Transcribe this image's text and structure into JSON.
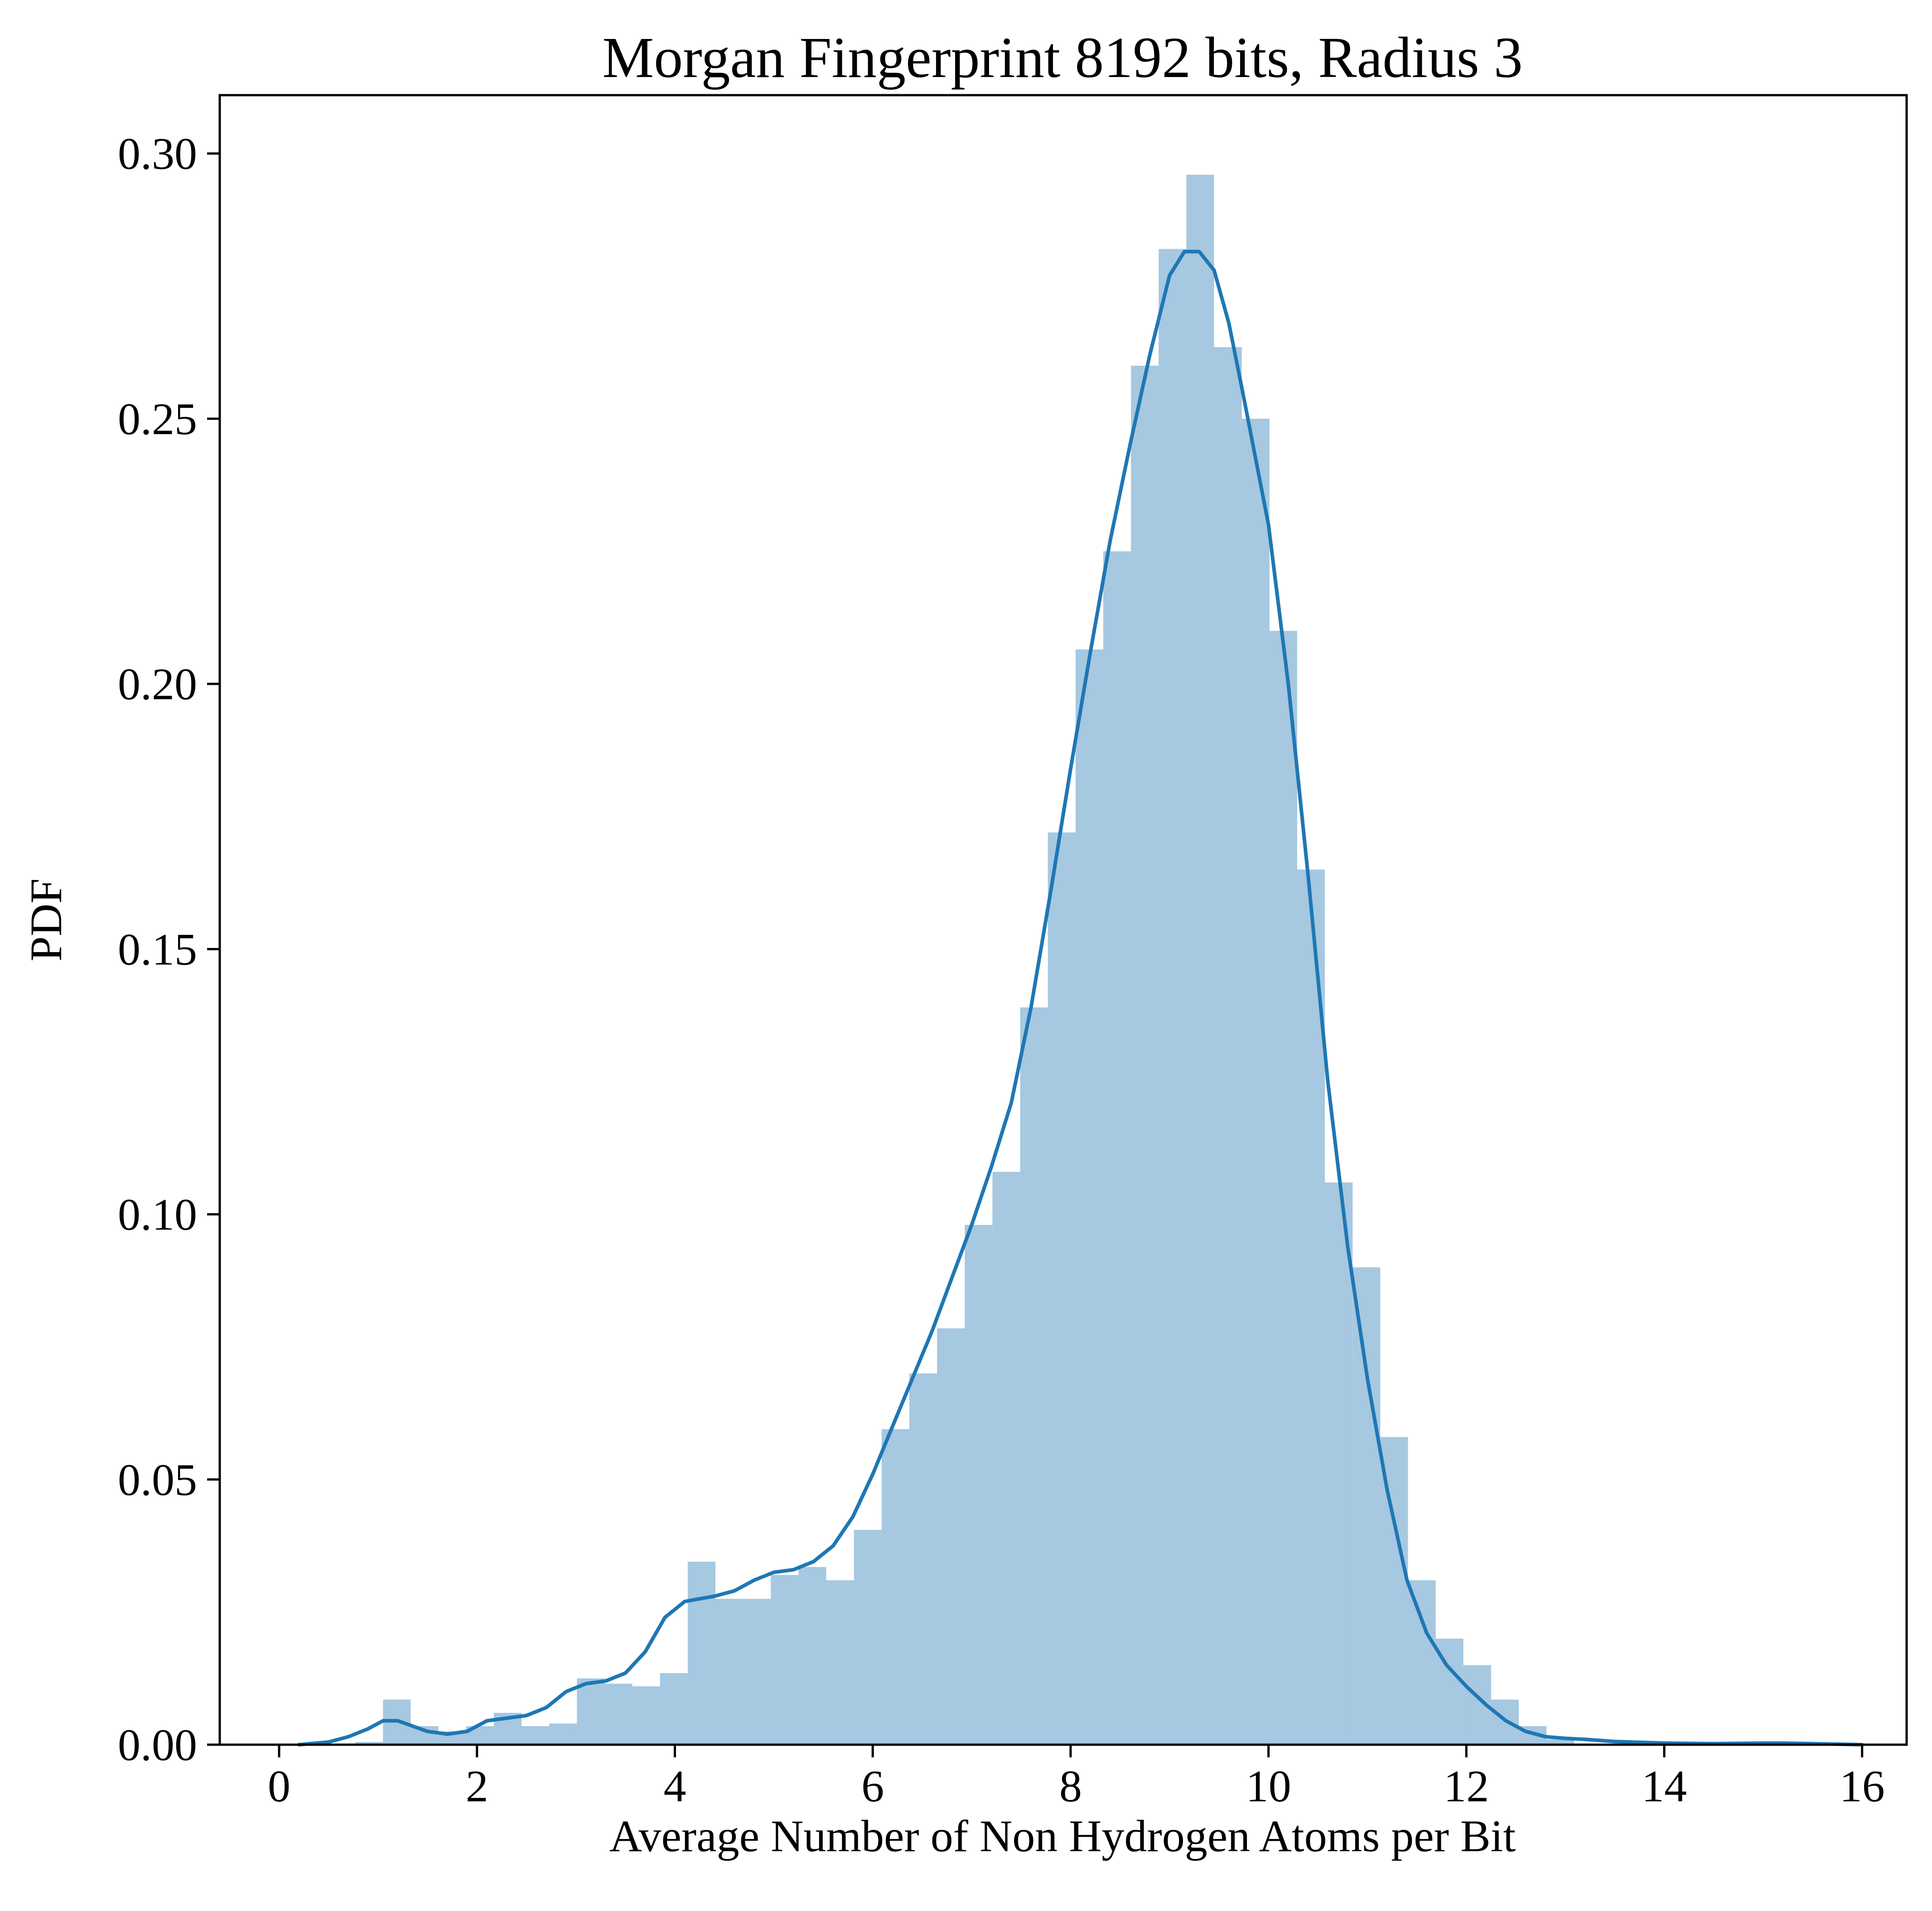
{
  "chart_data": {
    "type": "bar",
    "title": "Morgan Fingerprint 8192 bits, Radius 3",
    "xlabel": "Average Number of Non Hydrogen Atoms per Bit",
    "ylabel": "PDF",
    "xlim": [
      -0.6,
      16.45
    ],
    "ylim": [
      0,
      0.311
    ],
    "x_ticks": [
      0,
      2,
      4,
      6,
      8,
      10,
      12,
      14,
      16
    ],
    "x_tick_labels": [
      "0",
      "2",
      "4",
      "6",
      "8",
      "10",
      "12",
      "14",
      "16"
    ],
    "y_ticks": [
      0,
      0.05,
      0.1,
      0.15,
      0.2,
      0.25,
      0.3
    ],
    "y_tick_labels": [
      "0.00",
      "0.05",
      "0.10",
      "0.15",
      "0.20",
      "0.25",
      "0.30"
    ],
    "grid": false,
    "legend": "none",
    "bar_color": "#a6c8e1",
    "line_color": "#1f77b4",
    "histogram": {
      "bin_edges": [
        0.77,
        1.05,
        1.33,
        1.61,
        1.89,
        2.17,
        2.45,
        2.73,
        3.01,
        3.29,
        3.57,
        3.85,
        4.13,
        4.41,
        4.69,
        4.97,
        5.25,
        5.53,
        5.81,
        6.09,
        6.37,
        6.65,
        6.93,
        7.21,
        7.49,
        7.77,
        8.05,
        8.33,
        8.61,
        8.89,
        9.17,
        9.45,
        9.73,
        10.01,
        10.29,
        10.57,
        10.85,
        11.13,
        11.41,
        11.69,
        11.97,
        12.25,
        12.53,
        12.81,
        13.09
      ],
      "values": [
        0.0005,
        0.0085,
        0.0035,
        0.0025,
        0.0035,
        0.006,
        0.0035,
        0.004,
        0.0125,
        0.0115,
        0.011,
        0.0135,
        0.0345,
        0.0275,
        0.0275,
        0.032,
        0.0335,
        0.031,
        0.0405,
        0.0595,
        0.07,
        0.0785,
        0.098,
        0.108,
        0.139,
        0.172,
        0.2065,
        0.225,
        0.26,
        0.282,
        0.296,
        0.2635,
        0.25,
        0.21,
        0.165,
        0.106,
        0.09,
        0.058,
        0.031,
        0.02,
        0.015,
        0.0085,
        0.0035,
        0.001
      ]
    },
    "kde": {
      "x": [
        0.2,
        0.5,
        0.7,
        0.9,
        1.05,
        1.2,
        1.35,
        1.5,
        1.7,
        1.9,
        2.1,
        2.3,
        2.5,
        2.7,
        2.9,
        3.1,
        3.3,
        3.5,
        3.7,
        3.9,
        4.1,
        4.25,
        4.4,
        4.6,
        4.8,
        5.0,
        5.2,
        5.4,
        5.6,
        5.8,
        6.0,
        6.2,
        6.4,
        6.6,
        6.8,
        7.0,
        7.2,
        7.4,
        7.6,
        7.8,
        8.0,
        8.2,
        8.4,
        8.6,
        8.8,
        9.0,
        9.15,
        9.3,
        9.45,
        9.6,
        9.75,
        10.0,
        10.2,
        10.4,
        10.6,
        10.8,
        11.0,
        11.2,
        11.4,
        11.6,
        11.8,
        12.0,
        12.2,
        12.4,
        12.6,
        12.8,
        13.0,
        13.2,
        13.5,
        14.0,
        14.5,
        15.0,
        15.2,
        15.5,
        16.0
      ],
      "y": [
        0.0,
        0.0005,
        0.0015,
        0.003,
        0.0045,
        0.0045,
        0.0035,
        0.0025,
        0.002,
        0.0025,
        0.0045,
        0.005,
        0.0055,
        0.007,
        0.01,
        0.0115,
        0.012,
        0.0135,
        0.0175,
        0.024,
        0.027,
        0.0275,
        0.028,
        0.029,
        0.031,
        0.0325,
        0.033,
        0.0345,
        0.0375,
        0.043,
        0.051,
        0.06,
        0.069,
        0.078,
        0.088,
        0.098,
        0.109,
        0.121,
        0.139,
        0.161,
        0.184,
        0.206,
        0.227,
        0.245,
        0.262,
        0.277,
        0.2815,
        0.2815,
        0.278,
        0.268,
        0.254,
        0.23,
        0.2,
        0.164,
        0.125,
        0.094,
        0.069,
        0.048,
        0.031,
        0.021,
        0.015,
        0.011,
        0.0075,
        0.0045,
        0.0025,
        0.0015,
        0.0012,
        0.001,
        0.0006,
        0.0003,
        0.0002,
        0.0003,
        0.0003,
        0.0002,
        0.0
      ]
    }
  }
}
